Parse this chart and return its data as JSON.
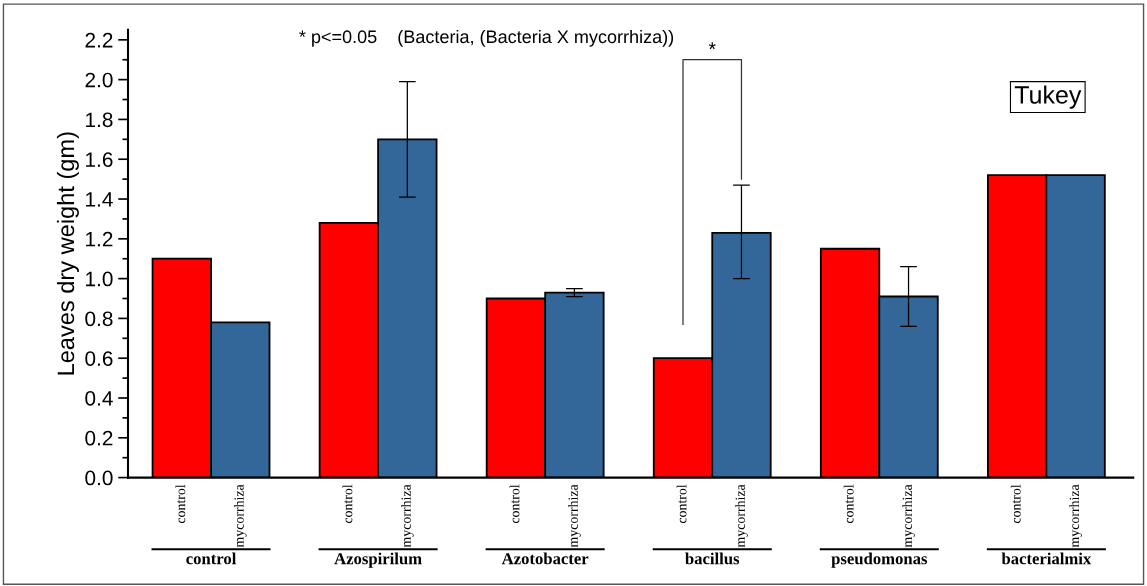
{
  "chart_data": {
    "type": "bar",
    "ylabel": "Leaves dry weight (gm)",
    "categories": [
      "control",
      "Azospirilum",
      "Azotobacter",
      "bacillus",
      "pseudomonas",
      "bacterialmix"
    ],
    "series": [
      {
        "name": "control",
        "color": "#ff0000",
        "values": [
          1.1,
          1.28,
          0.9,
          0.6,
          1.15,
          1.52
        ]
      },
      {
        "name": "mycorrhiza",
        "color": "#336699",
        "values": [
          0.78,
          1.7,
          0.93,
          1.23,
          0.91,
          1.52
        ],
        "errors": [
          null,
          [
            1.41,
            1.99
          ],
          [
            0.91,
            0.95
          ],
          [
            1.0,
            1.47
          ],
          [
            0.76,
            1.06
          ],
          null
        ]
      }
    ],
    "ylim": [
      0,
      2.25
    ],
    "yticks": [
      {
        "value": 0,
        "label": "0.0"
      },
      {
        "value": 0.2,
        "label": "0.2"
      },
      {
        "value": 0.4,
        "label": "0.4"
      },
      {
        "value": 0.6,
        "label": "0.6"
      },
      {
        "value": 0.8,
        "label": "0.8"
      },
      {
        "value": 1.0,
        "label": "1.0"
      },
      {
        "value": 1.2,
        "label": "1.2"
      },
      {
        "value": 1.4,
        "label": "1.4"
      },
      {
        "value": 1.6,
        "label": "1.6"
      },
      {
        "value": 1.8,
        "label": "1.8"
      },
      {
        "value": 2.0,
        "label": "2.0"
      },
      {
        "value": 2.2,
        "label": "2.2"
      }
    ],
    "annotations": [
      "* p<=0.05    (Bacteria, (Bacteria X mycorrhiza))",
      "Tukey",
      "*"
    ],
    "grid": false,
    "legend": false
  }
}
